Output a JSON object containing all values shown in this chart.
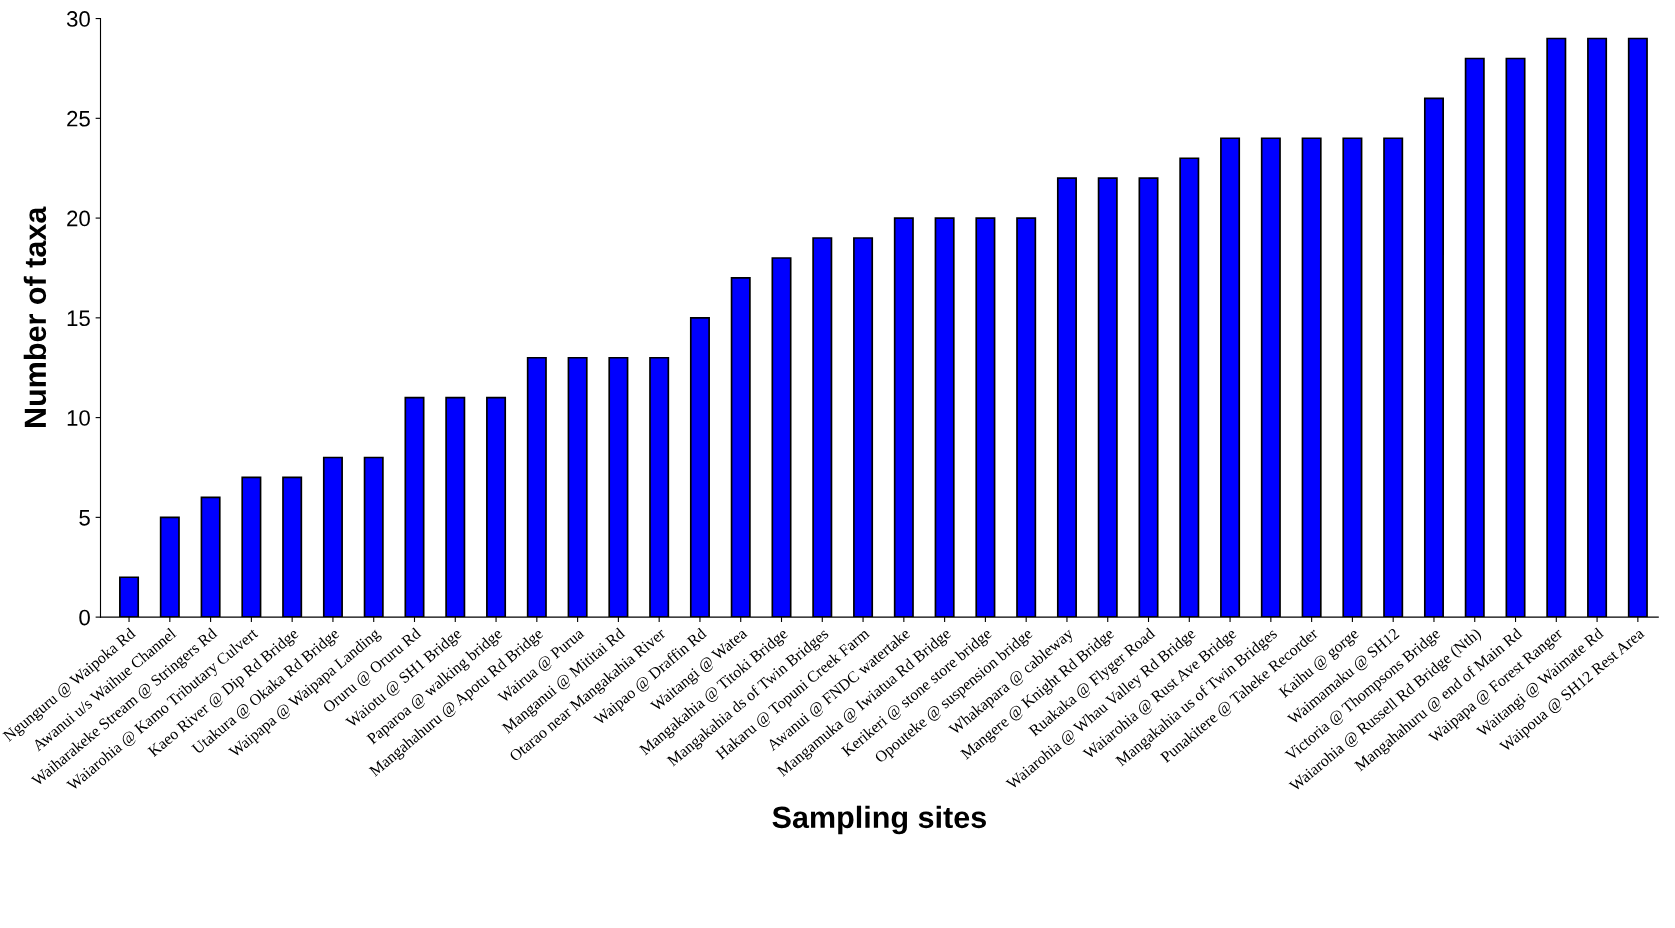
{
  "chart_data": {
    "type": "bar",
    "xlabel": "Sampling sites",
    "ylabel": "Number of taxa",
    "color": "#0000ff",
    "categories": [
      "Ngunguru @ Waipoka Rd",
      "Awanui u/s Waihue Channel",
      "Waiharakeke Stream @ Stringers Rd",
      "Waiarohia @ Kamo Tributary Culvert",
      "Kaeo River @ Dip Rd Bridge",
      "Utakura @ Okaka Rd Bridge",
      "Waipapa @ Waipapa Landing",
      "Oruru @ Oruru Rd",
      "Waiotu @ SH1 Bridge",
      "Paparoa @ walking bridge",
      "Mangahahuru @ Apotu Rd Bridge",
      "Wairua @ Purua",
      "Manganui @ Mititai Rd",
      "Otarao near Mangakahia River",
      "Waipao @ Draffin Rd",
      "Waitangi @ Watea",
      "Mangakahia @ Titoki Bridge",
      "Mangakahia ds of Twin Bridges",
      "Hakaru @ Topuni Creek Farm",
      "Awanui @ FNDC watertake",
      "Mangamuka @ Iwiatua Rd Bridge",
      "Kerikeri @ stone store bridge",
      "Opouteke @ suspension bridge",
      "Whakapara @ cableway",
      "Mangere @ Knight Rd Bridge",
      "Ruakaka @ Flyger Road",
      "Waiarohia @ Whau Valley Rd Bridge",
      "Waiarohia @ Rust Ave Bridge",
      "Mangakahia us of Twin Bridges",
      "Punakitere @ Taheke Recorder",
      "Kaihu @ gorge",
      "Waimamaku @ SH12",
      "Victoria @ Thompsons Bridge",
      "Waiarohia @ Russell Rd Bridge (Nth)",
      "Mangahahuru @ end of Main Rd",
      "Waipapa @ Forest Ranger",
      "Waitangi @ Waimate Rd",
      "Waipoua @ SH12 Rest Area"
    ],
    "values": [
      2,
      5,
      6,
      7,
      7,
      8,
      8,
      11,
      11,
      11,
      13,
      13,
      13,
      13,
      15,
      17,
      18,
      19,
      19,
      20,
      20,
      20,
      20,
      22,
      22,
      22,
      23,
      24,
      24,
      24,
      24,
      24,
      26,
      28,
      28,
      29,
      29,
      29
    ],
    "ylim": [
      0,
      30
    ],
    "yticks": [
      0,
      5,
      10,
      15,
      20,
      25,
      30
    ],
    "grid": false
  }
}
